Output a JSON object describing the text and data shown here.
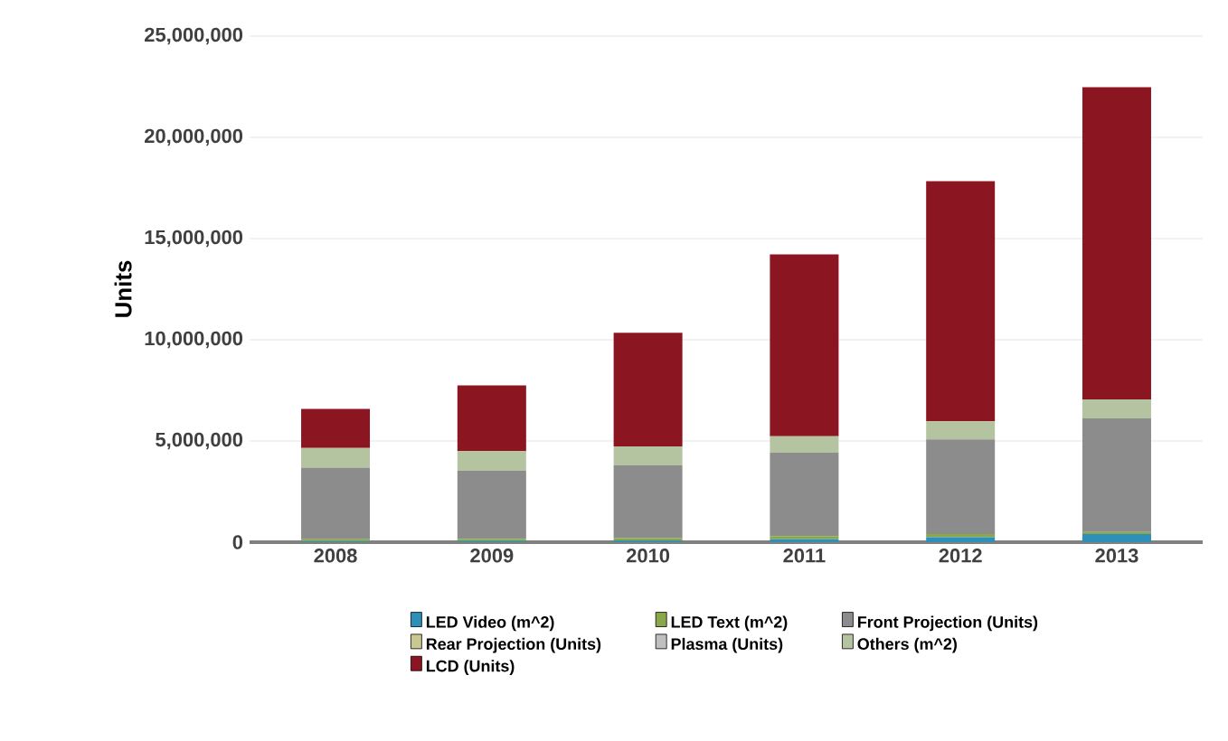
{
  "chart_data": {
    "type": "bar",
    "stacked": true,
    "ylabel": "Units",
    "categories": [
      "2008",
      "2009",
      "2010",
      "2011",
      "2012",
      "2013"
    ],
    "series": [
      {
        "name": "LED Video (m^2)",
        "color": "#2e8fb8",
        "values": [
          50000,
          60000,
          80000,
          150000,
          250000,
          400000
        ]
      },
      {
        "name": "LED Text (m^2)",
        "color": "#8aa84a",
        "values": [
          100000,
          100000,
          120000,
          150000,
          150000,
          100000
        ]
      },
      {
        "name": "Front Projection (Units)",
        "color": "#8c8c8c",
        "values": [
          3530000,
          3370000,
          3600000,
          4120000,
          4680000,
          5620000
        ]
      },
      {
        "name": "Rear Projection (Units)",
        "color": "#c8c890",
        "values": [
          0,
          0,
          0,
          0,
          0,
          0
        ]
      },
      {
        "name": "Plasma (Units)",
        "color": "#bfbfbf",
        "values": [
          0,
          0,
          0,
          0,
          0,
          0
        ]
      },
      {
        "name": "Others (m^2)",
        "color": "#b5c4a0",
        "values": [
          970000,
          970000,
          930000,
          810000,
          890000,
          930000
        ]
      },
      {
        "name": "LCD (Units)",
        "color": "#8b1520",
        "values": [
          1940000,
          3250000,
          5620000,
          8990000,
          11860000,
          15430000
        ]
      }
    ],
    "ylim": [
      0,
      25000000
    ],
    "yticks": [
      {
        "value": 0,
        "label": "0"
      },
      {
        "value": 5000000,
        "label": "5,000,000"
      },
      {
        "value": 10000000,
        "label": "10,000,000"
      },
      {
        "value": 15000000,
        "label": "15,000,000"
      },
      {
        "value": 20000000,
        "label": "20,000,000"
      },
      {
        "value": 25000000,
        "label": "25,000,000"
      }
    ],
    "grid": "y",
    "legend": "bottom"
  }
}
